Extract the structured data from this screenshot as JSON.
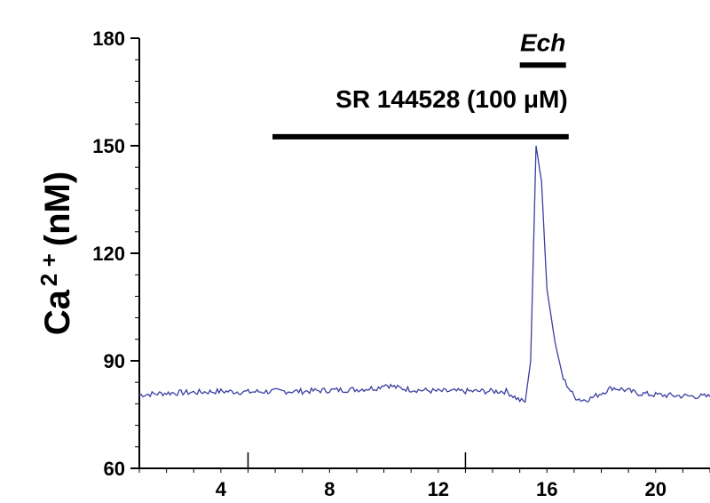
{
  "chart_data": {
    "type": "line",
    "title": "",
    "xlabel": "",
    "ylabel_base": "Ca",
    "ylabel_sup": "2 +",
    "ylabel_unit": "(nM)",
    "xlim": [
      1,
      22
    ],
    "ylim": [
      60,
      180
    ],
    "x_ticks": [
      4,
      8,
      12,
      16,
      20
    ],
    "y_ticks": [
      60,
      90,
      120,
      150,
      180
    ],
    "line_color": "#3a3fa0",
    "bar_color": "#000000",
    "grid": false,
    "series": [
      {
        "x": [
          1,
          2,
          3,
          4,
          5,
          6,
          7,
          8,
          9,
          9.8,
          10,
          10.5,
          11,
          12,
          13,
          14,
          14.5,
          15,
          15.2,
          15.4,
          15.6,
          15.8,
          16.0,
          16.3,
          16.6,
          17,
          17.3,
          17.6,
          18,
          18.4,
          18.8,
          19.3,
          20,
          21,
          22
        ],
        "y": [
          80.5,
          81,
          81.2,
          81.5,
          81.3,
          81.5,
          81.5,
          81.8,
          82,
          82.5,
          83.5,
          82.5,
          82,
          81.5,
          81.5,
          81.5,
          81.5,
          79,
          78.5,
          90,
          150,
          140,
          110,
          95,
          85,
          80,
          79,
          79.5,
          81,
          82.5,
          82,
          81,
          80.5,
          80.2,
          80
        ]
      }
    ],
    "annotations": [
      {
        "label": "SR 144528 (100 μM)",
        "x_start": 5.9,
        "x_end": 16.8,
        "y": 152.5
      },
      {
        "label": "Ech",
        "x_start": 15.0,
        "x_end": 16.7,
        "y": 172.5
      }
    ]
  }
}
